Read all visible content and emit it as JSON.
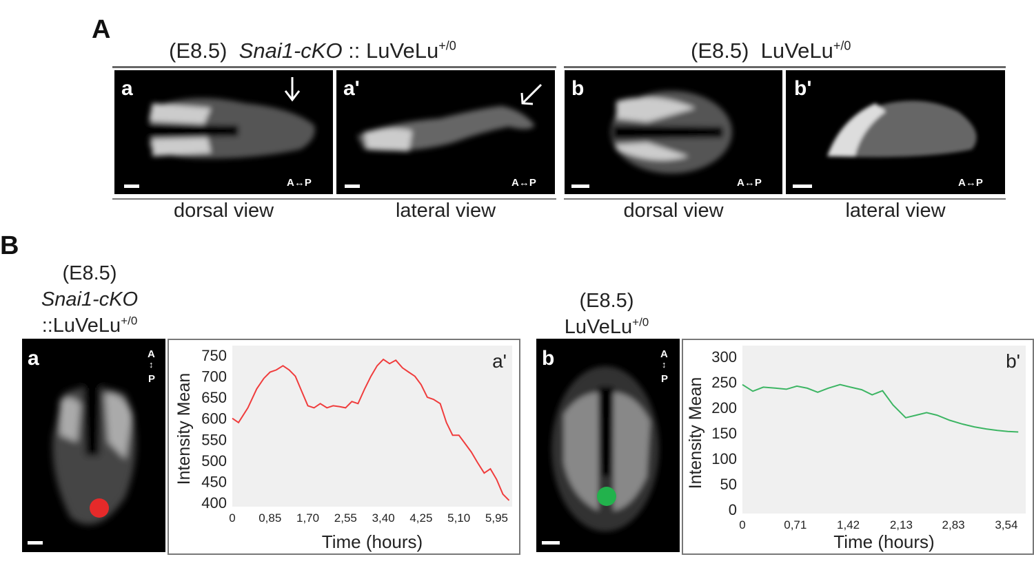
{
  "panelA": {
    "letter": "A",
    "left_header": {
      "stage": "(E8.5)",
      "genotype": "Snai1-cKO",
      "sep": " :: LuVeLu",
      "sup": "+/0"
    },
    "right_header": {
      "stage": "(E8.5)",
      "reporter": "LuVeLu",
      "sup": "+/0"
    },
    "images": [
      {
        "label": "a",
        "axis": "A↔P",
        "view": "dorsal view"
      },
      {
        "label": "a'",
        "axis": "A↔P",
        "view": "lateral view"
      },
      {
        "label": "b",
        "axis": "A↔P",
        "view": "dorsal view"
      },
      {
        "label": "b'",
        "axis": "A↔P",
        "view": "lateral view"
      }
    ]
  },
  "panelB": {
    "letter": "B",
    "left_caption": {
      "line1": "(E8.5)",
      "line2": "Snai1-cKO",
      "line3": "::LuVeLu",
      "sup": "+/0"
    },
    "right_caption": {
      "line1": "(E8.5)",
      "line2": "LuVeLu",
      "sup": "+/0"
    },
    "image_a": {
      "label": "a",
      "axis_a": "A",
      "axis_p": "P",
      "marker_color": "#e52a2a"
    },
    "image_b": {
      "label": "b",
      "axis_a": "A",
      "axis_p": "P",
      "marker_color": "#22b24c"
    }
  },
  "chart_data": [
    {
      "type": "line",
      "panel_label": "a'",
      "xlabel": "Time (hours)",
      "ylabel": "Intensity Mean",
      "ylim": [
        400,
        750
      ],
      "yticks": [
        "400",
        "450",
        "500",
        "550",
        "600",
        "650",
        "700",
        "750"
      ],
      "xlim": [
        0,
        6.3
      ],
      "xticks": [
        {
          "v": 0,
          "label": "0"
        },
        {
          "v": 0.85,
          "label": "0,85"
        },
        {
          "v": 1.7,
          "label": "1,70"
        },
        {
          "v": 2.55,
          "label": "2,55"
        },
        {
          "v": 3.4,
          "label": "3,40"
        },
        {
          "v": 4.25,
          "label": "4,25"
        },
        {
          "v": 5.1,
          "label": "5,10"
        },
        {
          "v": 5.95,
          "label": "5,95"
        }
      ],
      "color": "#f03c3c",
      "x": [
        0,
        0.14,
        0.35,
        0.55,
        0.71,
        0.85,
        0.99,
        1.14,
        1.28,
        1.42,
        1.56,
        1.7,
        1.84,
        1.98,
        2.13,
        2.27,
        2.41,
        2.55,
        2.69,
        2.83,
        2.98,
        3.12,
        3.26,
        3.4,
        3.54,
        3.68,
        3.83,
        3.97,
        4.11,
        4.25,
        4.39,
        4.53,
        4.68,
        4.82,
        4.96,
        5.1,
        5.24,
        5.38,
        5.52,
        5.67,
        5.81,
        5.95,
        6.09,
        6.23
      ],
      "y": [
        600,
        590,
        625,
        670,
        695,
        710,
        715,
        725,
        715,
        700,
        665,
        630,
        625,
        635,
        625,
        630,
        628,
        625,
        640,
        635,
        670,
        700,
        725,
        740,
        730,
        738,
        720,
        710,
        700,
        680,
        650,
        645,
        635,
        590,
        560,
        560,
        540,
        520,
        495,
        470,
        480,
        455,
        420,
        405
      ]
    },
    {
      "type": "line",
      "panel_label": "b'",
      "xlabel": "Time (hours)",
      "ylabel": "Intensity Mean",
      "ylim": [
        0,
        300
      ],
      "yticks": [
        "0",
        "50",
        "100",
        "150",
        "200",
        "250",
        "300"
      ],
      "xlim": [
        0,
        3.8
      ],
      "xticks": [
        {
          "v": 0,
          "label": "0"
        },
        {
          "v": 0.71,
          "label": "0,71"
        },
        {
          "v": 1.42,
          "label": "1,42"
        },
        {
          "v": 2.13,
          "label": "2,13"
        },
        {
          "v": 2.83,
          "label": "2,83"
        },
        {
          "v": 3.54,
          "label": "3,54"
        }
      ],
      "color": "#3cb563",
      "x": [
        0,
        0.14,
        0.28,
        0.45,
        0.59,
        0.73,
        0.87,
        1.01,
        1.15,
        1.31,
        1.45,
        1.6,
        1.74,
        1.88,
        2.02,
        2.19,
        2.33,
        2.47,
        2.61,
        2.78,
        2.94,
        3.11,
        3.27,
        3.42,
        3.56,
        3.7
      ],
      "y": [
        245,
        232,
        240,
        238,
        236,
        242,
        238,
        230,
        238,
        245,
        240,
        235,
        225,
        233,
        205,
        180,
        185,
        190,
        185,
        175,
        168,
        162,
        158,
        155,
        153,
        152
      ]
    }
  ]
}
